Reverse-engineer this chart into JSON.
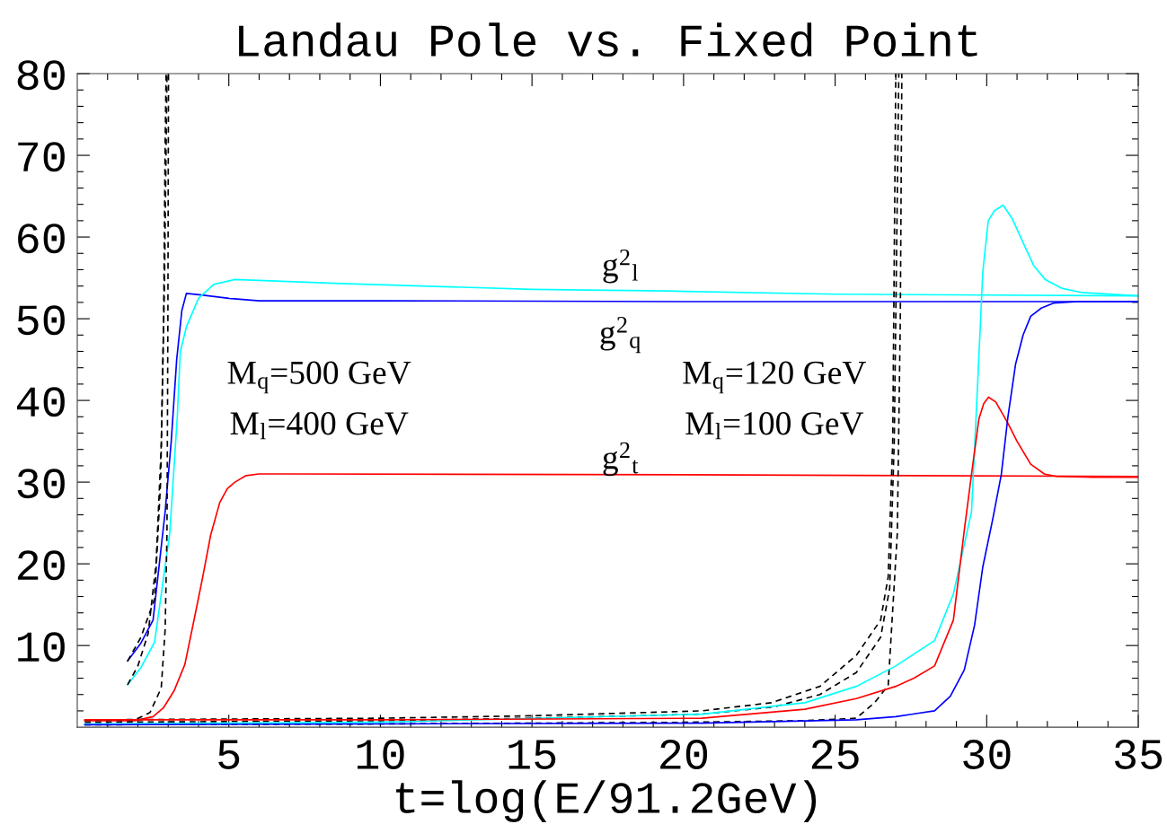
{
  "chart_data": {
    "type": "line",
    "title": "Landau Pole vs. Fixed Point",
    "xlabel": "t=log(E/91.2GeV)",
    "xlim": [
      0,
      35
    ],
    "ylim": [
      0,
      80
    ],
    "xticks": [
      {
        "value": 1,
        "label": null
      },
      {
        "value": 2,
        "label": null
      },
      {
        "value": 3,
        "label": null
      },
      {
        "value": 4,
        "label": null
      },
      5,
      {
        "value": 6,
        "label": null
      },
      {
        "value": 7,
        "label": null
      },
      {
        "value": 8,
        "label": null
      },
      {
        "value": 9,
        "label": null
      },
      10,
      {
        "value": 11,
        "label": null
      },
      {
        "value": 12,
        "label": null
      },
      {
        "value": 13,
        "label": null
      },
      {
        "value": 14,
        "label": null
      },
      15,
      {
        "value": 16,
        "label": null
      },
      {
        "value": 17,
        "label": null
      },
      {
        "value": 18,
        "label": null
      },
      {
        "value": 19,
        "label": null
      },
      20,
      {
        "value": 21,
        "label": null
      },
      {
        "value": 22,
        "label": null
      },
      {
        "value": 23,
        "label": null
      },
      {
        "value": 24,
        "label": null
      },
      25,
      {
        "value": 26,
        "label": null
      },
      {
        "value": 27,
        "label": null
      },
      {
        "value": 28,
        "label": null
      },
      {
        "value": 29,
        "label": null
      },
      30,
      {
        "value": 31,
        "label": null
      },
      {
        "value": 32,
        "label": null
      },
      {
        "value": 33,
        "label": null
      },
      {
        "value": 34,
        "label": null
      },
      35
    ],
    "yticks": [
      {
        "value": 2,
        "label": null
      },
      {
        "value": 4,
        "label": null
      },
      {
        "value": 6,
        "label": null
      },
      {
        "value": 8,
        "label": null
      },
      10,
      {
        "value": 12,
        "label": null
      },
      {
        "value": 14,
        "label": null
      },
      {
        "value": 16,
        "label": null
      },
      {
        "value": 18,
        "label": null
      },
      20,
      {
        "value": 22,
        "label": null
      },
      {
        "value": 24,
        "label": null
      },
      {
        "value": 26,
        "label": null
      },
      {
        "value": 28,
        "label": null
      },
      30,
      {
        "value": 32,
        "label": null
      },
      {
        "value": 34,
        "label": null
      },
      {
        "value": 36,
        "label": null
      },
      {
        "value": 38,
        "label": null
      },
      40,
      {
        "value": 42,
        "label": null
      },
      {
        "value": 44,
        "label": null
      },
      {
        "value": 46,
        "label": null
      },
      {
        "value": 48,
        "label": null
      },
      50,
      {
        "value": 52,
        "label": null
      },
      {
        "value": 54,
        "label": null
      },
      {
        "value": 56,
        "label": null
      },
      {
        "value": 58,
        "label": null
      },
      60,
      {
        "value": 62,
        "label": null
      },
      {
        "value": 64,
        "label": null
      },
      {
        "value": 66,
        "label": null
      },
      {
        "value": 68,
        "label": null
      },
      70,
      {
        "value": 72,
        "label": null
      },
      {
        "value": 74,
        "label": null
      },
      {
        "value": 76,
        "label": null
      },
      {
        "value": 78,
        "label": null
      },
      80
    ],
    "grid": false,
    "legend": false,
    "marker": "none",
    "line_style": "solid",
    "series": [
      {
        "color": "#0000ff",
        "x": [
          1.66,
          2.1,
          2.5,
          2.9,
          3.1,
          3.28,
          3.45,
          3.6,
          4.1,
          5,
          6,
          10,
          20,
          35
        ],
        "values": [
          8.1,
          10.3,
          13.1,
          26.4,
          35,
          45,
          51,
          53.1,
          52.9,
          52.5,
          52.2,
          52.2,
          52.1,
          52.1
        ]
      },
      {
        "color": "#00ffff",
        "x": [
          1.66,
          2.1,
          2.55,
          3.05,
          3.3,
          3.4,
          3.6,
          4.0,
          4.5,
          5.2,
          8.7,
          15,
          19.4,
          25,
          35
        ],
        "values": [
          5.2,
          7.3,
          10.4,
          23.7,
          38,
          46,
          49,
          52.5,
          54.2,
          54.8,
          54.3,
          53.6,
          53.4,
          53.0,
          52.8
        ]
      },
      {
        "color": "#ff0000",
        "x": [
          0.25,
          1.9,
          2.5,
          2.85,
          3.2,
          3.55,
          3.9,
          4.14,
          4.4,
          4.7,
          4.95,
          5.2,
          5.57,
          6,
          7,
          20,
          35
        ],
        "values": [
          0.8,
          0.8,
          1.3,
          2.4,
          4.5,
          7.7,
          14,
          18.4,
          23.5,
          27.5,
          29.2,
          30.0,
          30.8,
          31.0,
          31.0,
          30.9,
          30.7
        ]
      },
      {
        "color": "#000000",
        "line_style": "dashed",
        "x": [
          1.66,
          2.1,
          2.55,
          2.75,
          2.85,
          2.9,
          2.93
        ],
        "values": [
          8.1,
          11,
          15.7,
          30,
          50,
          71.8,
          80
        ]
      },
      {
        "color": "#000000",
        "line_style": "dashed",
        "x": [
          1.66,
          2.0,
          2.34,
          2.6,
          2.77,
          2.88,
          2.96
        ],
        "values": [
          5.2,
          7.5,
          11.5,
          20,
          34.4,
          55,
          80
        ]
      },
      {
        "color": "#000000",
        "line_style": "dashed",
        "x": [
          0.25,
          1.9,
          2.4,
          2.77,
          2.9,
          2.96,
          2.99,
          3.01
        ],
        "values": [
          0.9,
          0.9,
          1.8,
          4.8,
          12,
          23.7,
          50,
          80
        ]
      },
      {
        "color": "#000000",
        "line_style": "dashed",
        "x": [
          0.25,
          10,
          15,
          20.6,
          22.9,
          24.5,
          25.7,
          26.5,
          26.75,
          26.9,
          27.0
        ],
        "values": [
          0.9,
          1.1,
          1.4,
          2.0,
          3.0,
          5,
          8.8,
          13.1,
          18.4,
          35,
          80
        ]
      },
      {
        "color": "#000000",
        "line_style": "dashed",
        "x": [
          0.25,
          10,
          15,
          20.6,
          23,
          24.5,
          25.7,
          26.5,
          26.8,
          26.95,
          27.1
        ],
        "values": [
          0.6,
          0.8,
          1.1,
          1.6,
          2.5,
          4,
          6.7,
          11,
          17,
          35,
          80
        ]
      },
      {
        "color": "#000000",
        "line_style": "dashed",
        "x": [
          0.25,
          10,
          20,
          24,
          25.7,
          26.3,
          26.75,
          27.05,
          27.15,
          27.2
        ],
        "values": [
          0.3,
          0.4,
          0.6,
          0.8,
          1.1,
          3.0,
          5.1,
          23.7,
          50,
          80
        ]
      },
      {
        "color": "#00ffff",
        "x": [
          0.25,
          10,
          20.6,
          24,
          25.7,
          27,
          28.28,
          28.9,
          29.5,
          29.7,
          29.87,
          30.05,
          30.25,
          30.54,
          30.85,
          31.2,
          31.55,
          31.93,
          32.5,
          33.15,
          35
        ],
        "values": [
          0.4,
          0.6,
          1.6,
          3,
          5.0,
          7.5,
          10.6,
          16.3,
          26.4,
          42,
          55.7,
          62.0,
          63.2,
          63.9,
          62.2,
          59.3,
          56.5,
          54.8,
          53.7,
          53.2,
          52.8
        ]
      },
      {
        "color": "#ff0000",
        "x": [
          0.25,
          10,
          20.6,
          24,
          25.7,
          27,
          27.6,
          28.28,
          28.9,
          29.26,
          29.5,
          29.74,
          29.9,
          30.06,
          30.3,
          30.7,
          31.0,
          31.45,
          31.9,
          32.3,
          33.5,
          35
        ],
        "values": [
          0.9,
          0.9,
          1.1,
          2.2,
          3.5,
          5,
          6.0,
          7.5,
          13.1,
          24.1,
          31,
          37.7,
          39.6,
          40.4,
          39.8,
          37.2,
          35,
          32.2,
          31.0,
          30.7,
          30.6,
          30.6
        ]
      },
      {
        "color": "#0000ff",
        "x": [
          0.25,
          10,
          20.6,
          25.7,
          27,
          28.28,
          28.8,
          29.26,
          29.6,
          29.87,
          30.2,
          30.48,
          30.7,
          30.95,
          31.2,
          31.45,
          31.8,
          32.2,
          33,
          35
        ],
        "values": [
          0.3,
          0.4,
          0.5,
          0.9,
          1.3,
          2.0,
          3.8,
          7.0,
          12.5,
          19.6,
          25.5,
          30.9,
          38,
          44.4,
          48,
          50.3,
          51.3,
          51.9,
          52.1,
          52.1
        ]
      }
    ],
    "annotations": [
      "g$^{2}$$_{l}$",
      "g$^{2}$$_{q}$",
      "g$^{2}$$_{t}$",
      "M$_{q}$=500 GeV",
      "M$_{l}$=400 GeV",
      "M$_{q}$=120 GeV",
      "M$_{l}$=100 GeV"
    ]
  }
}
